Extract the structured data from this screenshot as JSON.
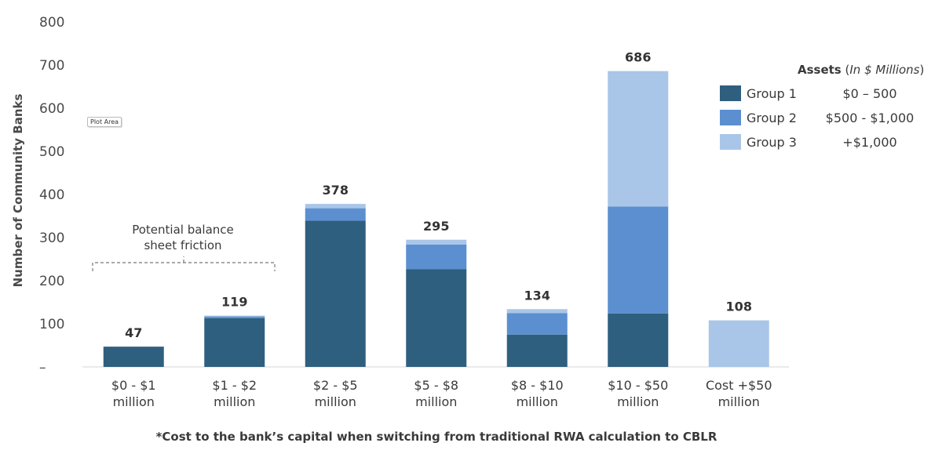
{
  "chart_data": {
    "type": "bar",
    "stacked": true,
    "categories": [
      [
        "$0 - $1",
        "million"
      ],
      [
        "$1 - $2",
        "million"
      ],
      [
        "$2 - $5",
        "million"
      ],
      [
        "$5 - $8",
        "million"
      ],
      [
        "$8 - $10",
        "million"
      ],
      [
        "$10 - $50",
        "million"
      ],
      [
        "Cost +$50",
        "million"
      ]
    ],
    "series": [
      {
        "name": "Group 1",
        "range": "$0 – 500",
        "color": "#2f5f7f",
        "values": [
          47,
          113,
          339,
          227,
          75,
          124,
          0
        ]
      },
      {
        "name": "Group 2",
        "range": "$500 - $1,000",
        "color": "#5b8fd0",
        "values": [
          0,
          4,
          29,
          57,
          50,
          248,
          0
        ]
      },
      {
        "name": "Group 3",
        "range": "+$1,000",
        "color": "#a9c6e8",
        "values": [
          0,
          2,
          10,
          11,
          9,
          314,
          108
        ]
      }
    ],
    "totals": [
      "47",
      "119",
      "378",
      "295",
      "134",
      "686",
      "108"
    ],
    "ylabel": "Number of Community Banks",
    "yticks": [
      "–",
      "100",
      "200",
      "300",
      "400",
      "500",
      "600",
      "700",
      "800"
    ],
    "ylim": [
      0,
      800
    ],
    "grid": false,
    "legend_position": "right",
    "legend_title": {
      "bold": "Assets",
      "rest": " (",
      "italic": "In $ Millions",
      "close": ")"
    },
    "annotation": {
      "lines": [
        "Potential balance",
        "sheet friction"
      ],
      "spans_categories": [
        0,
        1
      ]
    },
    "footnote": "*Cost to the bank’s capital when switching from traditional RWA calculation to CBLR"
  },
  "ui": {
    "plot_area_tag": "Plot Area"
  }
}
